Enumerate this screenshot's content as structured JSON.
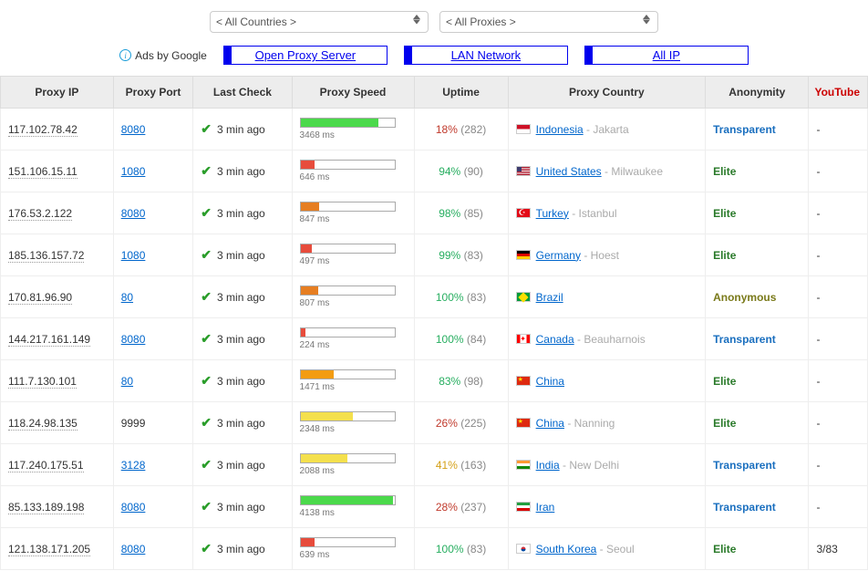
{
  "filters": {
    "country": "< All Countries >",
    "proxy": "< All Proxies >"
  },
  "ads": {
    "label": "Ads by Google",
    "links": [
      "Open Proxy Server",
      "LAN Network",
      "All IP"
    ]
  },
  "columns": [
    "Proxy IP",
    "Proxy Port",
    "Last Check",
    "Proxy Speed",
    "Uptime",
    "Proxy Country",
    "Anonymity",
    "YouTube"
  ],
  "speed_bar": {
    "max_ms": 4200
  },
  "rows": [
    {
      "ip": "117.102.78.42",
      "port": "8080",
      "port_link": true,
      "check": "3 min ago",
      "speed_ms": 3468,
      "speed_color": "#4bd94b",
      "uptime_pct": "18%",
      "uptime_pct_color": "#c0392b",
      "uptime_cnt": "(282)",
      "flag": "id",
      "country": "Indonesia",
      "city": "Jakarta",
      "anon": "Transparent",
      "anon_class": "anon-transparent",
      "yt": "-"
    },
    {
      "ip": "151.106.15.11",
      "port": "1080",
      "port_link": true,
      "check": "3 min ago",
      "speed_ms": 646,
      "speed_color": "#e74c3c",
      "uptime_pct": "94%",
      "uptime_pct_color": "#27ae60",
      "uptime_cnt": "(90)",
      "flag": "us",
      "country": "United States",
      "city": "Milwaukee",
      "anon": "Elite",
      "anon_class": "anon-elite",
      "yt": "-"
    },
    {
      "ip": "176.53.2.122",
      "port": "8080",
      "port_link": true,
      "check": "3 min ago",
      "speed_ms": 847,
      "speed_color": "#e67e22",
      "uptime_pct": "98%",
      "uptime_pct_color": "#27ae60",
      "uptime_cnt": "(85)",
      "flag": "tr",
      "country": "Turkey",
      "city": "Istanbul",
      "anon": "Elite",
      "anon_class": "anon-elite",
      "yt": "-"
    },
    {
      "ip": "185.136.157.72",
      "port": "1080",
      "port_link": true,
      "check": "3 min ago",
      "speed_ms": 497,
      "speed_color": "#e74c3c",
      "uptime_pct": "99%",
      "uptime_pct_color": "#27ae60",
      "uptime_cnt": "(83)",
      "flag": "de",
      "country": "Germany",
      "city": "Hoest",
      "anon": "Elite",
      "anon_class": "anon-elite",
      "yt": "-"
    },
    {
      "ip": "170.81.96.90",
      "port": "80",
      "port_link": true,
      "check": "3 min ago",
      "speed_ms": 807,
      "speed_color": "#e67e22",
      "uptime_pct": "100%",
      "uptime_pct_color": "#27ae60",
      "uptime_cnt": "(83)",
      "flag": "br",
      "country": "Brazil",
      "city": "",
      "anon": "Anonymous",
      "anon_class": "anon-anonymous",
      "yt": "-"
    },
    {
      "ip": "144.217.161.149",
      "port": "8080",
      "port_link": true,
      "check": "3 min ago",
      "speed_ms": 224,
      "speed_color": "#e74c3c",
      "uptime_pct": "100%",
      "uptime_pct_color": "#27ae60",
      "uptime_cnt": "(84)",
      "flag": "ca",
      "country": "Canada",
      "city": "Beauharnois",
      "anon": "Transparent",
      "anon_class": "anon-transparent",
      "yt": "-"
    },
    {
      "ip": "111.7.130.101",
      "port": "80",
      "port_link": true,
      "check": "3 min ago",
      "speed_ms": 1471,
      "speed_color": "#f39c12",
      "uptime_pct": "83%",
      "uptime_pct_color": "#27ae60",
      "uptime_cnt": "(98)",
      "flag": "cn",
      "country": "China",
      "city": "",
      "anon": "Elite",
      "anon_class": "anon-elite",
      "yt": "-"
    },
    {
      "ip": "118.24.98.135",
      "port": "9999",
      "port_link": false,
      "check": "3 min ago",
      "speed_ms": 2348,
      "speed_color": "#f4e04d",
      "uptime_pct": "26%",
      "uptime_pct_color": "#c0392b",
      "uptime_cnt": "(225)",
      "flag": "cn",
      "country": "China",
      "city": "Nanning",
      "anon": "Elite",
      "anon_class": "anon-elite",
      "yt": "-"
    },
    {
      "ip": "117.240.175.51",
      "port": "3128",
      "port_link": true,
      "check": "3 min ago",
      "speed_ms": 2088,
      "speed_color": "#f4e04d",
      "uptime_pct": "41%",
      "uptime_pct_color": "#d4a017",
      "uptime_cnt": "(163)",
      "flag": "in",
      "country": "India",
      "city": "New Delhi",
      "anon": "Transparent",
      "anon_class": "anon-transparent",
      "yt": "-"
    },
    {
      "ip": "85.133.189.198",
      "port": "8080",
      "port_link": true,
      "check": "3 min ago",
      "speed_ms": 4138,
      "speed_color": "#4bd94b",
      "uptime_pct": "28%",
      "uptime_pct_color": "#c0392b",
      "uptime_cnt": "(237)",
      "flag": "ir",
      "country": "Iran",
      "city": "",
      "anon": "Transparent",
      "anon_class": "anon-transparent",
      "yt": "-"
    },
    {
      "ip": "121.138.171.205",
      "port": "8080",
      "port_link": true,
      "check": "3 min ago",
      "speed_ms": 639,
      "speed_color": "#e74c3c",
      "uptime_pct": "100%",
      "uptime_pct_color": "#27ae60",
      "uptime_cnt": "(83)",
      "flag": "kr",
      "country": "South Korea",
      "city": "Seoul",
      "anon": "Elite",
      "anon_class": "anon-elite",
      "yt": "3/83"
    }
  ]
}
